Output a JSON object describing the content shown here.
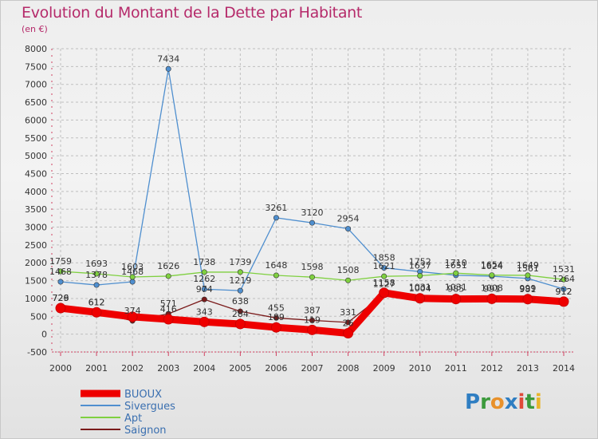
{
  "title": "Evolution du Montant de la Dette par Habitant",
  "subtitle": "(en €)",
  "logo": {
    "text": "Proxiti",
    "letters": [
      "P",
      "r",
      "o",
      "x",
      "i",
      "t",
      "i"
    ]
  },
  "chart_data": {
    "type": "line",
    "title": "Evolution du Montant de la Dette par Habitant",
    "ylabel": "(en €)",
    "xlabel": "",
    "ylim": [
      -500,
      8000
    ],
    "yticks": [
      -500,
      0,
      500,
      1000,
      1500,
      2000,
      2500,
      3000,
      3500,
      4000,
      4500,
      5000,
      5500,
      6000,
      6500,
      7000,
      7500,
      8000
    ],
    "ytick_labels": [
      "-500",
      "0",
      "500",
      "1000",
      "1500",
      "2000",
      "2500",
      "3000",
      "3500",
      "4000",
      "4500",
      "5000",
      "5500",
      "6000",
      "6500",
      "7000",
      "7500",
      "8000"
    ],
    "categories": [
      "2000",
      "2001",
      "2002",
      "2003",
      "2004",
      "2005",
      "2006",
      "2007",
      "2008",
      "2009",
      "2010",
      "2011",
      "2012",
      "2013",
      "2014"
    ],
    "series": [
      {
        "name": "BUOUX",
        "color": "#ee0000",
        "values": [
          729,
          612,
          486,
          416,
          343,
          284,
          189,
          119,
          26,
          1158,
          1004,
          985,
          991,
          981,
          912
        ],
        "labels": [
          "729",
          "612",
          "",
          "416",
          "343",
          "284",
          "189",
          "119",
          "26",
          "1158",
          "1004",
          "985",
          "991",
          "981",
          "912"
        ]
      },
      {
        "name": "Sivergues",
        "color": "#4f8fcf",
        "values": [
          1468,
          1378,
          1468,
          7434,
          1262,
          1219,
          3261,
          3120,
          2954,
          1858,
          1752,
          1651,
          1624,
          1561,
          1264
        ],
        "labels": [
          "1468",
          "1378",
          "1468",
          "7434",
          "1262",
          "1219",
          "3261",
          "3120",
          "2954",
          "1858",
          "1752",
          "1651",
          "1624",
          "1561",
          "1264"
        ]
      },
      {
        "name": "Apt",
        "color": "#7fd040",
        "values": [
          1759,
          1693,
          1603,
          1626,
          1738,
          1739,
          1648,
          1598,
          1508,
          1621,
          1637,
          1710,
          1654,
          1649,
          1531
        ],
        "labels": [
          "1759",
          "1693",
          "1603",
          "1626",
          "1738",
          "1739",
          "1648",
          "1598",
          "1508",
          "1621",
          "1637",
          "1710",
          "1654",
          "1649",
          "1531"
        ]
      },
      {
        "name": "Saignon",
        "color": "#7a1a1a",
        "values": [
          726,
          612,
          374,
          571,
          974,
          638,
          455,
          387,
          331,
          1127,
          1031,
          1031,
          1008,
          999,
          912
        ],
        "labels": [
          "726",
          "612",
          "374",
          "571",
          "974",
          "638",
          "455",
          "387",
          "331",
          "1127",
          "1031",
          "1031",
          "1008",
          "999",
          "912"
        ]
      }
    ],
    "grid": true,
    "legend_position": "bottom-left"
  }
}
